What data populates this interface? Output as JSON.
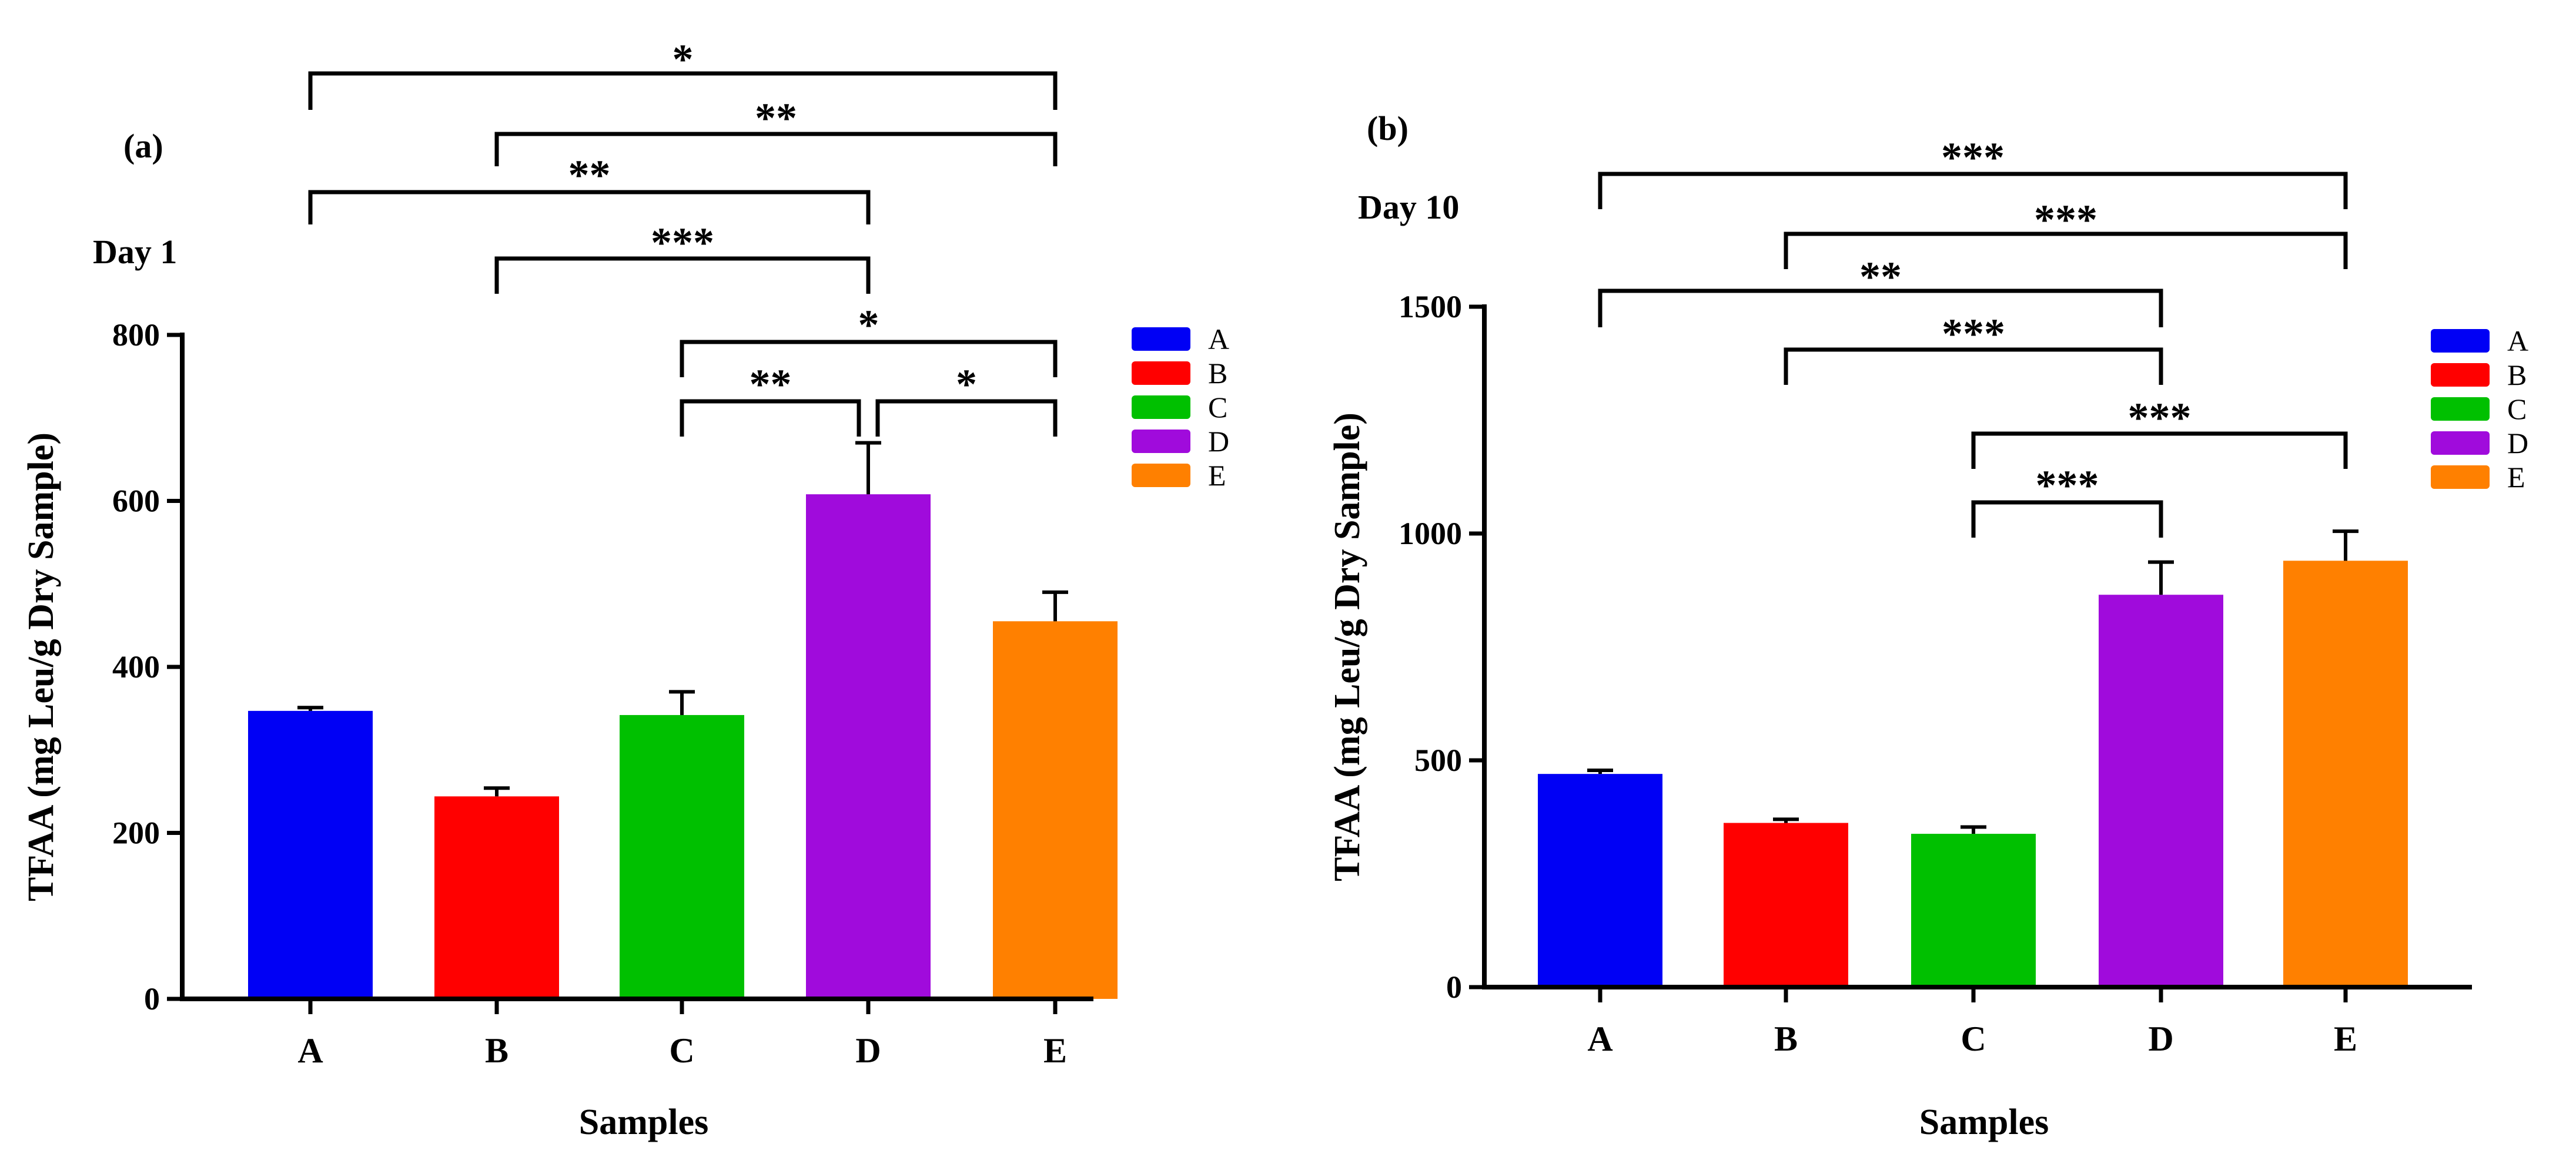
{
  "chart_data": [
    {
      "type": "bar",
      "panel_label": "(a)",
      "day_label": "Day 1",
      "xlabel": "Samples",
      "ylabel": "TFAA (mg Leu/g Dry Sample)",
      "categories": [
        "A",
        "B",
        "C",
        "D",
        "E"
      ],
      "values": [
        347,
        244,
        342,
        608,
        455
      ],
      "errors": [
        4,
        10,
        28,
        62,
        35
      ],
      "ylim": [
        0,
        800
      ],
      "yticks": [
        0,
        200,
        400,
        600,
        800
      ],
      "colors": [
        "#0000f5",
        "#ff0000",
        "#00c000",
        "#a00bdc",
        "#ff8000"
      ],
      "legend": [
        "A",
        "B",
        "C",
        "D",
        "E"
      ],
      "legend_position": "right",
      "significance": [
        {
          "from": "A",
          "to": "E",
          "label": "*"
        },
        {
          "from": "B",
          "to": "E",
          "label": "**"
        },
        {
          "from": "A",
          "to": "D",
          "label": "**"
        },
        {
          "from": "B",
          "to": "D",
          "label": "***"
        },
        {
          "from": "C",
          "to": "E",
          "label": "*"
        },
        {
          "from": "C",
          "to": "D",
          "label": "**"
        },
        {
          "from": "D",
          "to": "E",
          "label": "*"
        }
      ]
    },
    {
      "type": "bar",
      "panel_label": "(b)",
      "day_label": "Day 10",
      "xlabel": "Samples",
      "ylabel": "TFAA (mg Leu/g Dry Sample)",
      "categories": [
        "A",
        "B",
        "C",
        "D",
        "E"
      ],
      "values": [
        470,
        362,
        338,
        865,
        940
      ],
      "errors": [
        8,
        8,
        15,
        72,
        65
      ],
      "ylim": [
        0,
        1500
      ],
      "yticks": [
        0,
        500,
        1000,
        1500
      ],
      "colors": [
        "#0000f5",
        "#ff0000",
        "#00c000",
        "#a00bdc",
        "#ff8000"
      ],
      "legend": [
        "A",
        "B",
        "C",
        "D",
        "E"
      ],
      "legend_position": "right",
      "significance": [
        {
          "from": "A",
          "to": "E",
          "label": "***"
        },
        {
          "from": "B",
          "to": "E",
          "label": "***"
        },
        {
          "from": "A",
          "to": "D",
          "label": "**"
        },
        {
          "from": "B",
          "to": "D",
          "label": "***"
        },
        {
          "from": "C",
          "to": "E",
          "label": "***"
        },
        {
          "from": "C",
          "to": "D",
          "label": "***"
        }
      ]
    }
  ]
}
